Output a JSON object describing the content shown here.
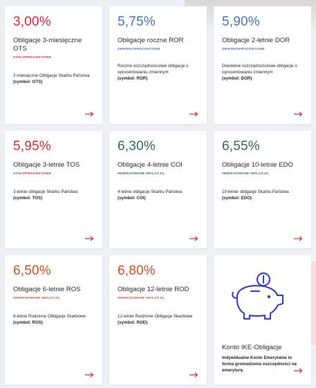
{
  "colors": {
    "red": "#e02a3c",
    "blue": "#4a72c5",
    "green": "#2f6b5e",
    "orange": "#dc4c22",
    "icon": "#3b46c4"
  },
  "cards": [
    {
      "rate": "3,00%",
      "title": "Obligacje 3-miesięczne OTS",
      "tag": "STAŁOPROCENTOWE",
      "desc": "3 miesięczne Obligacje Skarbu Państwa",
      "symbol": "(symbol: OTS)"
    },
    {
      "rate": "5,75%",
      "title": "Obligacje roczne ROR",
      "tag": "ZMIENNOPROCENTOWE",
      "desc": "Roczne oszczędnościowe obligacje o oprocentowaniu zmiennym",
      "symbol": "(symbol: ROR)"
    },
    {
      "rate": "5,90%",
      "title": "Obligacje 2-letnie DOR",
      "tag": "ZMIENNOPROCENTOWE",
      "desc": "Dwuletnie oszczędnościowe obligacje o oprocentowaniu zmiennym",
      "symbol": "(symbol: DOR)"
    },
    {
      "rate": "5,95%",
      "title": "Obligacje 3-letnie TOS",
      "tag": "STAŁOPROCENTOWE",
      "desc": "3-letnie obligacje Skarbu Państwa",
      "symbol": "(symbol: TOS)"
    },
    {
      "rate": "6,30%",
      "title": "Obligacje 4-letnie COI",
      "tag": "INDEKSOWANE INFLACJĄ",
      "desc": "4-letnie obligacje Skarbu Państwa",
      "symbol": "(symbol: COI)"
    },
    {
      "rate": "6,55%",
      "title": "Obligacje 10-letnie EDO",
      "tag": "INDEKSOWANE INFLACJĄ",
      "desc": "10-letnie obligacje Skarbu Państwa",
      "symbol": "(symbol: EDO)"
    },
    {
      "rate": "6,50%",
      "title": "Obligacje 6-letnie ROS",
      "tag": "INDEKSOWANE INFLACJĄ",
      "desc": "6-letnie Rodzinne Obligacje Skarbowe",
      "symbol": "(symbol: ROS)"
    },
    {
      "rate": "6,80%",
      "title": "Obligacje 12-letnie ROD",
      "tag": "INDEKSOWANE INFLACJĄ",
      "desc": "12-letnie Rodzinne Obligacje Skarbowe",
      "symbol": "(symbol: ROD)"
    },
    {
      "title": "Konto IKE-Obligacje",
      "desc": "Indywidualne Konto Emerytalne to forma gromadzenia oszczędności na emeryturę.",
      "icon": "piggy-bank-coin-icon"
    }
  ],
  "arrow_icon": "arrow-right-icon"
}
